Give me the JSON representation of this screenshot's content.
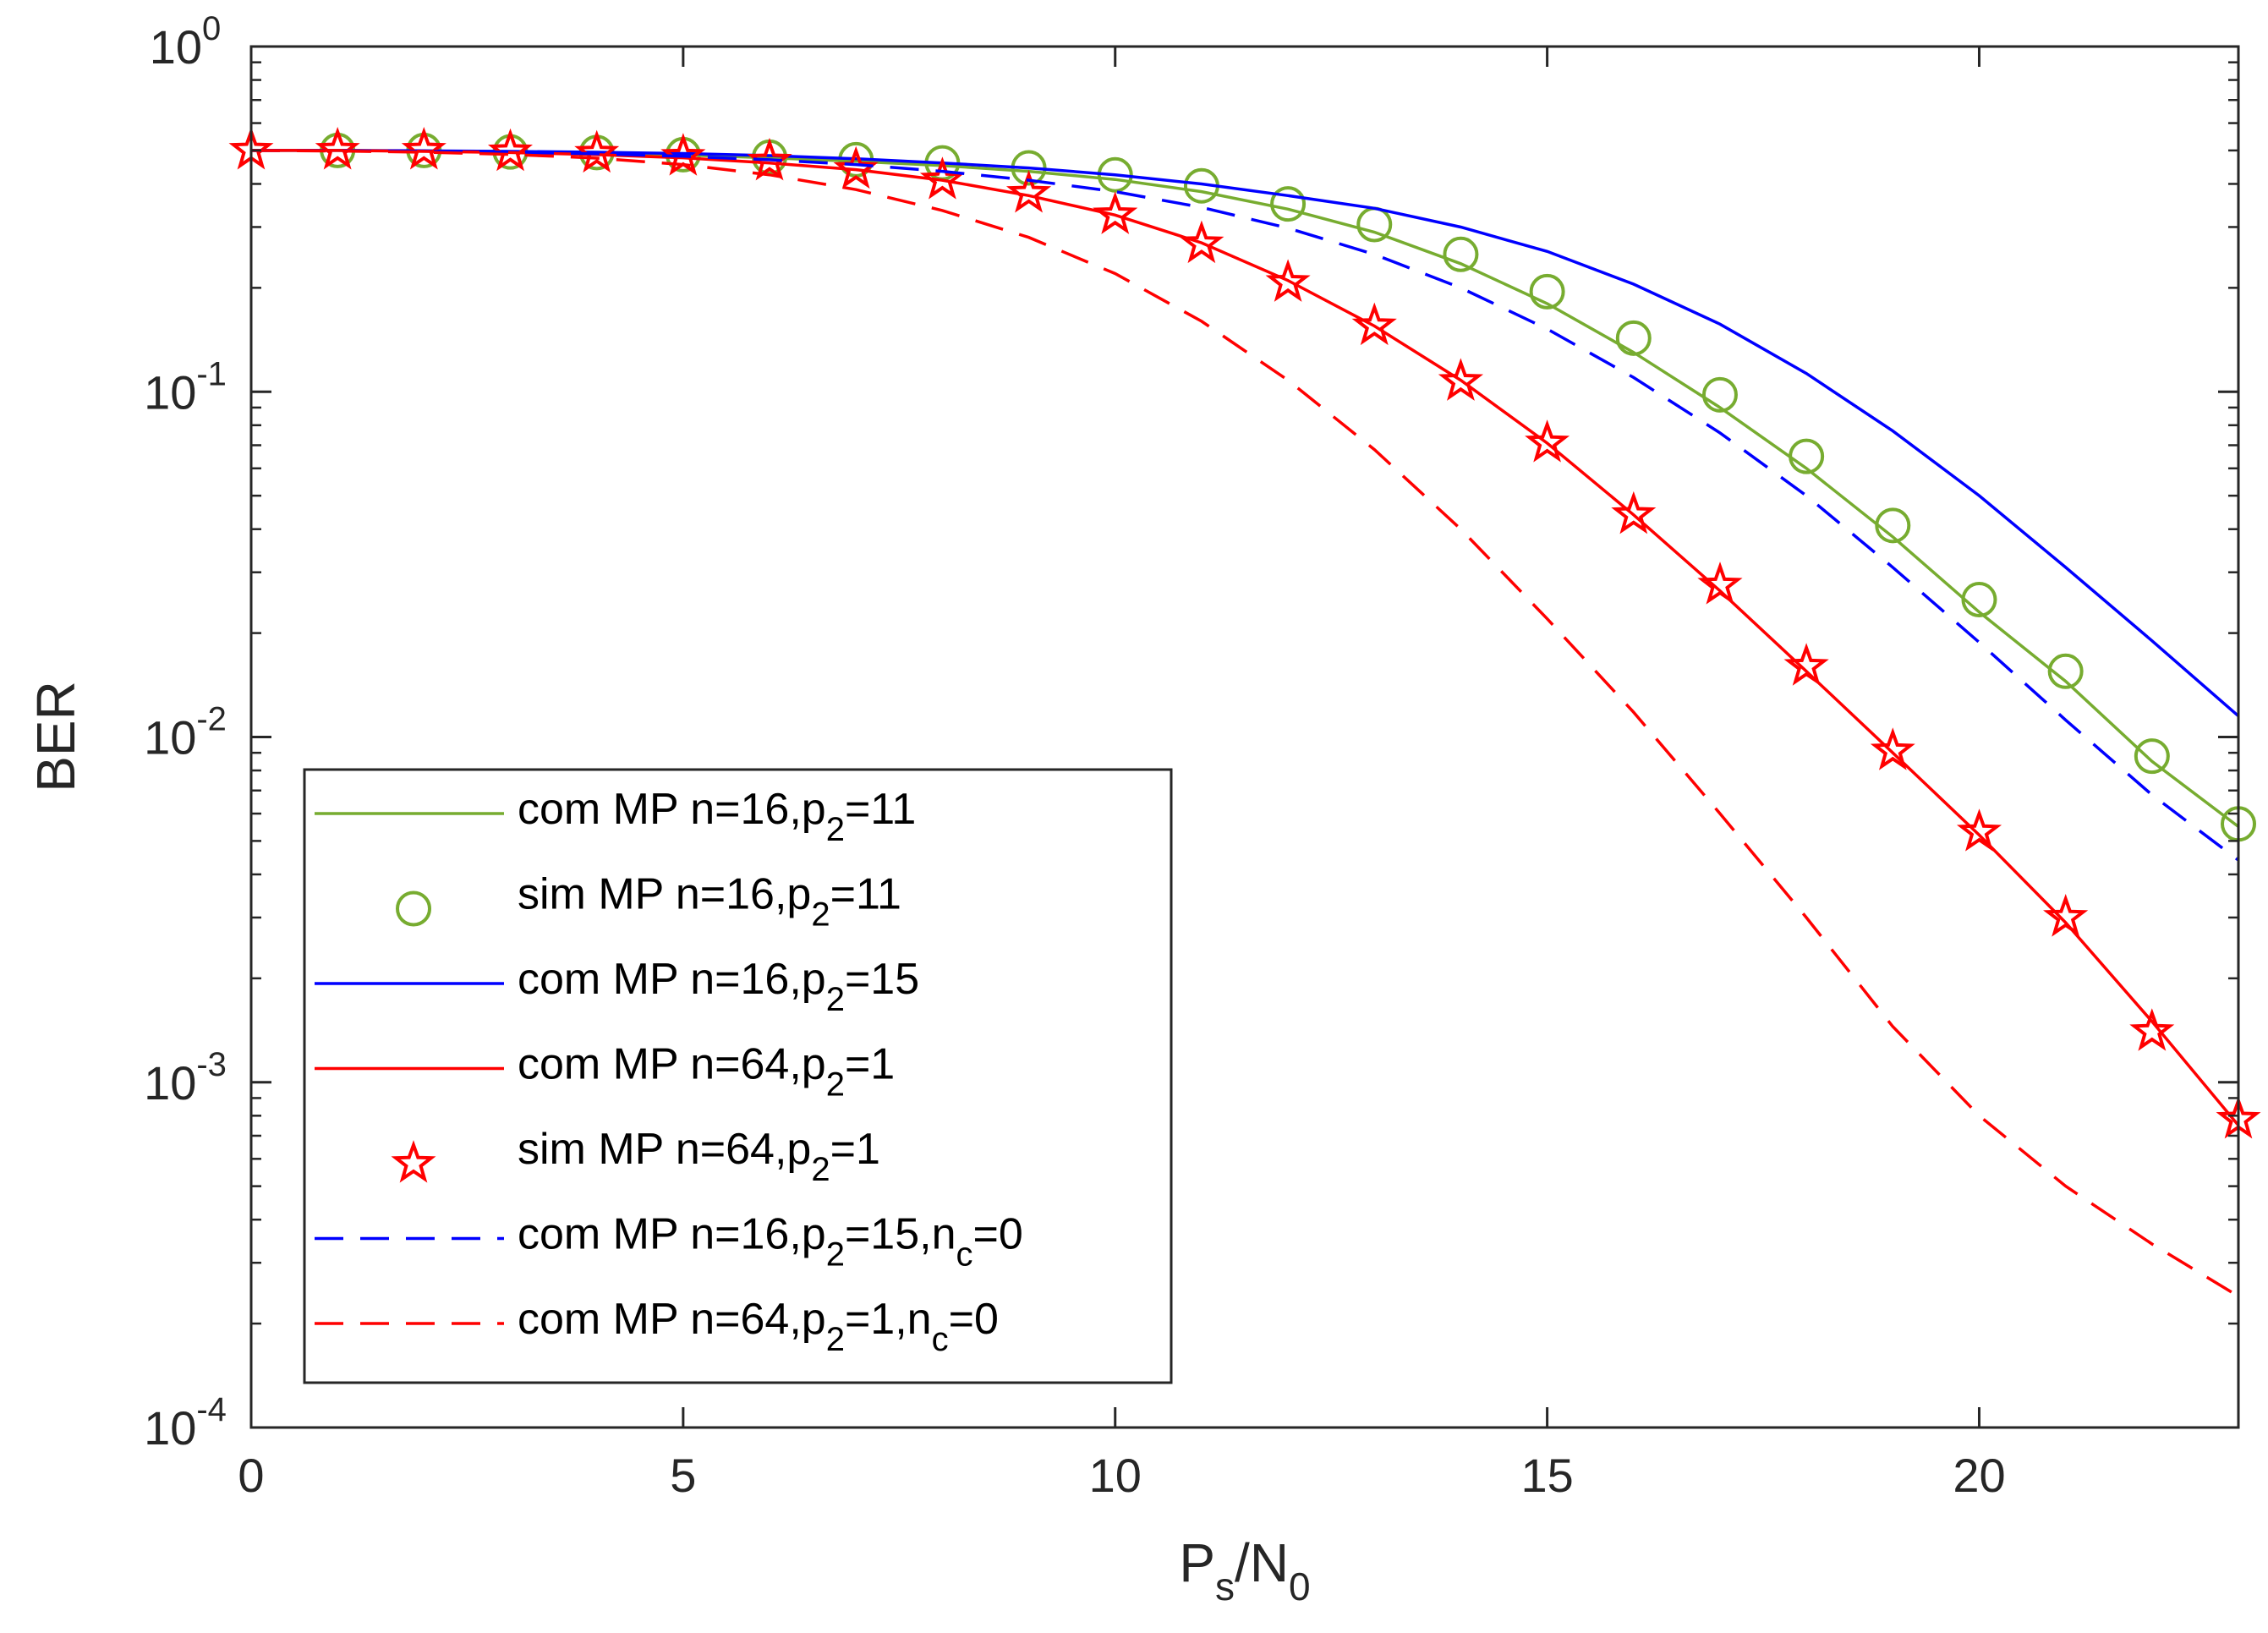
{
  "chart_data": {
    "type": "line",
    "xlabel": {
      "main": "P",
      "sub": "s",
      "sep": "/N",
      "sub2": "0"
    },
    "ylabel": "BER",
    "xlim": [
      0,
      23
    ],
    "ylim": [
      0.0001,
      1
    ],
    "yscale": "log",
    "grid": false,
    "xticks": [
      0,
      5,
      10,
      15,
      20
    ],
    "xtick_labels": [
      "0",
      "5",
      "10",
      "15",
      "20"
    ],
    "yticks": [
      {
        "value": 1,
        "base": "10",
        "exp": "0"
      },
      {
        "value": 0.1,
        "base": "10",
        "exp": "-1"
      },
      {
        "value": 0.01,
        "base": "10",
        "exp": "-2"
      },
      {
        "value": 0.001,
        "base": "10",
        "exp": "-3"
      },
      {
        "value": 0.0001,
        "base": "10",
        "exp": "-4"
      }
    ],
    "legend_position": "bottom-left",
    "series": [
      {
        "name": "com MP n=16,p2=11",
        "label": {
          "pre": "com MP n=16,p",
          "sub": "2",
          "post": "=11",
          "sub2": "",
          "post2": ""
        },
        "color": "#77ac30",
        "style": "solid",
        "marker": "none",
        "x": [
          0,
          1,
          2,
          3,
          4,
          5,
          6,
          7,
          8,
          9,
          10,
          11,
          12,
          13,
          14,
          15,
          16,
          17,
          18,
          19,
          20,
          21,
          22,
          23
        ],
        "y": [
          0.5,
          0.5,
          0.498,
          0.496,
          0.492,
          0.485,
          0.476,
          0.465,
          0.452,
          0.435,
          0.412,
          0.38,
          0.338,
          0.29,
          0.235,
          0.18,
          0.13,
          0.09,
          0.06,
          0.038,
          0.023,
          0.0145,
          0.0085,
          0.0055
        ]
      },
      {
        "name": "sim MP n=16,p2=11",
        "label": {
          "pre": "sim MP n=16,p",
          "sub": "2",
          "post": "=11",
          "sub2": "",
          "post2": ""
        },
        "color": "#77ac30",
        "style": "none",
        "marker": "circle",
        "x": [
          1,
          2,
          3,
          4,
          5,
          6,
          7,
          8,
          9,
          10,
          11,
          12,
          13,
          14,
          15,
          16,
          17,
          18,
          19,
          20,
          21,
          22,
          23
        ],
        "y": [
          0.5,
          0.5,
          0.495,
          0.493,
          0.486,
          0.478,
          0.47,
          0.46,
          0.445,
          0.425,
          0.395,
          0.35,
          0.305,
          0.25,
          0.195,
          0.143,
          0.098,
          0.065,
          0.041,
          0.025,
          0.0155,
          0.0088,
          0.0056
        ]
      },
      {
        "name": "com MP n=16,p2=15",
        "label": {
          "pre": "com MP n=16,p",
          "sub": "2",
          "post": "=15",
          "sub2": "",
          "post2": ""
        },
        "color": "#0000ff",
        "style": "solid",
        "marker": "none",
        "x": [
          0,
          1,
          2,
          3,
          4,
          5,
          6,
          7,
          8,
          9,
          10,
          11,
          12,
          13,
          14,
          15,
          16,
          17,
          18,
          19,
          20,
          21,
          22,
          23
        ],
        "y": [
          0.5,
          0.5,
          0.499,
          0.497,
          0.494,
          0.49,
          0.483,
          0.473,
          0.46,
          0.445,
          0.425,
          0.4,
          0.37,
          0.34,
          0.3,
          0.255,
          0.205,
          0.157,
          0.113,
          0.077,
          0.05,
          0.031,
          0.019,
          0.0115
        ]
      },
      {
        "name": "com MP n=64,p2=1",
        "label": {
          "pre": "com MP n=64,p",
          "sub": "2",
          "post": "=1",
          "sub2": "",
          "post2": ""
        },
        "color": "#ff0000",
        "style": "solid",
        "marker": "none",
        "x": [
          0,
          1,
          2,
          3,
          4,
          5,
          6,
          7,
          8,
          9,
          10,
          11,
          12,
          13,
          14,
          15,
          16,
          17,
          18,
          19,
          20,
          21,
          22,
          23
        ],
        "y": [
          0.5,
          0.5,
          0.497,
          0.493,
          0.486,
          0.476,
          0.46,
          0.44,
          0.41,
          0.37,
          0.325,
          0.27,
          0.21,
          0.155,
          0.108,
          0.071,
          0.044,
          0.0265,
          0.0155,
          0.009,
          0.0052,
          0.0029,
          0.0015,
          0.00075
        ]
      },
      {
        "name": "sim MP n=64,p2=1",
        "label": {
          "pre": "sim MP n=64,p",
          "sub": "2",
          "post": "=1",
          "sub2": "",
          "post2": ""
        },
        "color": "#ff0000",
        "style": "none",
        "marker": "star",
        "x": [
          0,
          1,
          2,
          3,
          4,
          5,
          6,
          7,
          8,
          9,
          10,
          11,
          12,
          13,
          14,
          15,
          16,
          17,
          18,
          19,
          20,
          21,
          22,
          23
        ],
        "y": [
          0.5,
          0.5,
          0.5,
          0.495,
          0.49,
          0.48,
          0.465,
          0.44,
          0.41,
          0.375,
          0.325,
          0.268,
          0.207,
          0.155,
          0.107,
          0.071,
          0.044,
          0.0275,
          0.016,
          0.0091,
          0.0053,
          0.003,
          0.0014,
          0.00078
        ]
      },
      {
        "name": "com MP n=16,p2=15,nc=0",
        "label": {
          "pre": "com MP n=16,p",
          "sub": "2",
          "post": "=15,n",
          "sub2": "c",
          "post2": "=0"
        },
        "color": "#0000ff",
        "style": "dashed",
        "marker": "none",
        "x": [
          0,
          1,
          2,
          3,
          4,
          5,
          6,
          7,
          8,
          9,
          10,
          11,
          12,
          13,
          14,
          15,
          16,
          17,
          18,
          19,
          20,
          21,
          22,
          23
        ],
        "y": [
          0.5,
          0.499,
          0.497,
          0.494,
          0.489,
          0.481,
          0.47,
          0.455,
          0.435,
          0.41,
          0.38,
          0.342,
          0.298,
          0.25,
          0.2,
          0.152,
          0.11,
          0.076,
          0.05,
          0.031,
          0.0188,
          0.0112,
          0.0068,
          0.0044
        ]
      },
      {
        "name": "com MP n=64,p2=1,nc=0",
        "label": {
          "pre": "com MP n=64,p",
          "sub": "2",
          "post": "=1,n",
          "sub2": "c",
          "post2": "=0"
        },
        "color": "#ff0000",
        "style": "dashed",
        "marker": "none",
        "x": [
          0,
          1,
          2,
          3,
          4,
          5,
          6,
          7,
          8,
          9,
          10,
          11,
          12,
          13,
          14,
          15,
          16,
          17,
          18,
          19,
          20,
          21,
          22,
          23
        ],
        "y": [
          0.5,
          0.498,
          0.494,
          0.487,
          0.475,
          0.455,
          0.425,
          0.385,
          0.335,
          0.28,
          0.22,
          0.16,
          0.108,
          0.068,
          0.04,
          0.022,
          0.0118,
          0.006,
          0.003,
          0.00145,
          0.0008,
          0.0005,
          0.00034,
          0.00024
        ]
      }
    ]
  }
}
